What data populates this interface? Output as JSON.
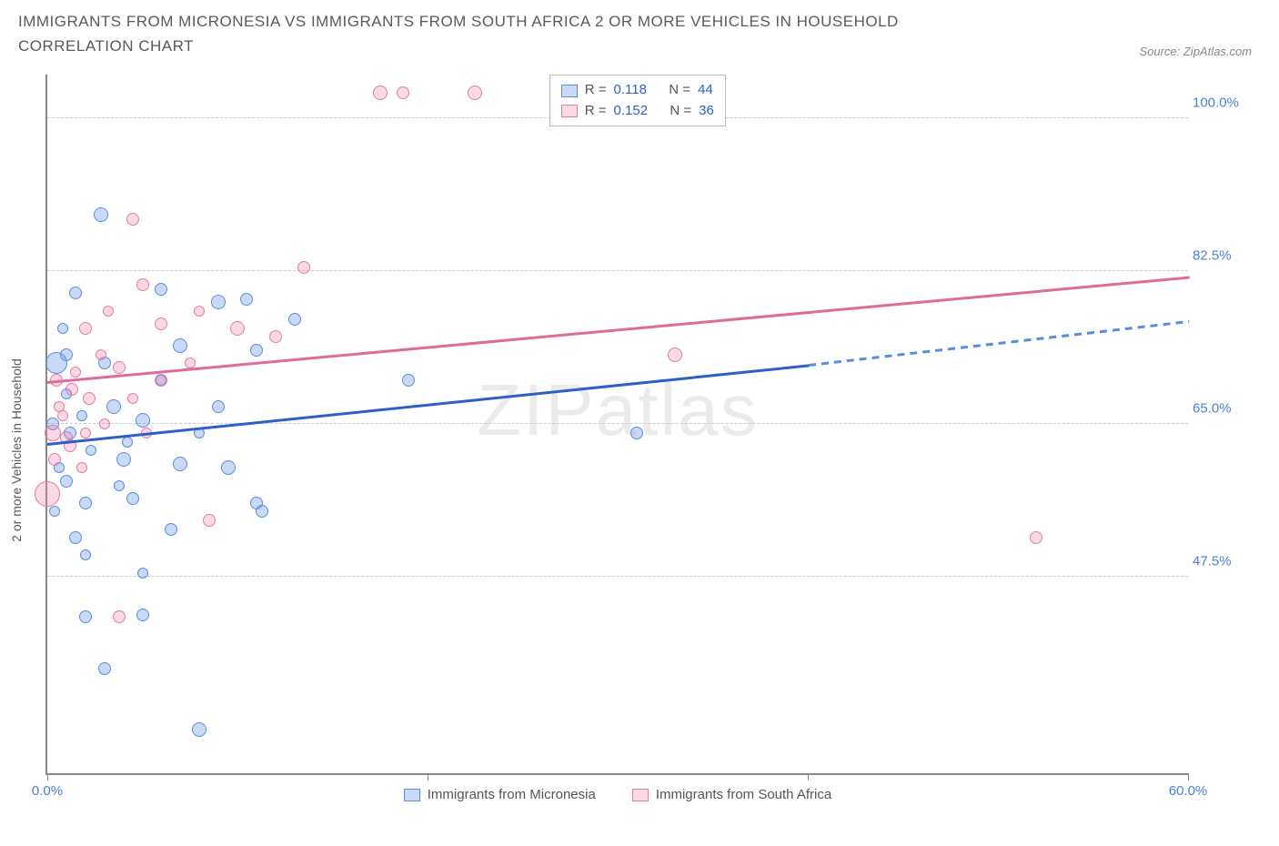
{
  "title": "IMMIGRANTS FROM MICRONESIA VS IMMIGRANTS FROM SOUTH AFRICA 2 OR MORE VEHICLES IN HOUSEHOLD CORRELATION CHART",
  "source_label": "Source: ZipAtlas.com",
  "watermark": "ZIPatlas",
  "y_axis_label": "2 or more Vehicles in Household",
  "chart": {
    "type": "scatter",
    "background_color": "#ffffff",
    "grid_color": "#cccccc",
    "axis_color": "#888888",
    "tick_label_color": "#4a7fd8",
    "xlim": [
      0,
      60
    ],
    "ylim": [
      25,
      105
    ],
    "y_ticks": [
      47.5,
      65.0,
      82.5,
      100.0
    ],
    "y_tick_labels": [
      "47.5%",
      "65.0%",
      "82.5%",
      "100.0%"
    ],
    "x_tick_positions": [
      0,
      20,
      40,
      60
    ],
    "x_tick_labels": {
      "left": "0.0%",
      "right": "60.0%"
    }
  },
  "series": [
    {
      "name": "Immigrants from Micronesia",
      "color_fill": "rgba(100,150,230,0.35)",
      "color_stroke": "#5a8de0",
      "css_class": "blue",
      "R": "0.118",
      "N": "44",
      "trend": {
        "x1": 0,
        "y1": 63,
        "x2": 40,
        "y2": 72,
        "dashed_to_x": 60,
        "dashed_to_y": 77,
        "color": "#2c5fc9"
      },
      "points": [
        {
          "x": 2.8,
          "y": 89,
          "r": 8
        },
        {
          "x": 1.5,
          "y": 80,
          "r": 7
        },
        {
          "x": 6,
          "y": 80.5,
          "r": 7
        },
        {
          "x": 9,
          "y": 79,
          "r": 8
        },
        {
          "x": 10.5,
          "y": 79.3,
          "r": 7
        },
        {
          "x": 3,
          "y": 72,
          "r": 7
        },
        {
          "x": 1,
          "y": 73,
          "r": 7
        },
        {
          "x": 0.5,
          "y": 72,
          "r": 12
        },
        {
          "x": 7,
          "y": 74,
          "r": 8
        },
        {
          "x": 11,
          "y": 73.5,
          "r": 7
        },
        {
          "x": 13,
          "y": 77,
          "r": 7
        },
        {
          "x": 0.3,
          "y": 65,
          "r": 7
        },
        {
          "x": 1.2,
          "y": 64,
          "r": 7
        },
        {
          "x": 3.5,
          "y": 67,
          "r": 8
        },
        {
          "x": 5,
          "y": 65.5,
          "r": 8
        },
        {
          "x": 9,
          "y": 67,
          "r": 7
        },
        {
          "x": 4,
          "y": 61,
          "r": 8
        },
        {
          "x": 7,
          "y": 60.5,
          "r": 8
        },
        {
          "x": 9.5,
          "y": 60,
          "r": 8
        },
        {
          "x": 1,
          "y": 58.5,
          "r": 7
        },
        {
          "x": 2,
          "y": 56,
          "r": 7
        },
        {
          "x": 4.5,
          "y": 56.5,
          "r": 7
        },
        {
          "x": 11,
          "y": 56,
          "r": 7
        },
        {
          "x": 11.3,
          "y": 55,
          "r": 7
        },
        {
          "x": 1.5,
          "y": 52,
          "r": 7
        },
        {
          "x": 6.5,
          "y": 53,
          "r": 7
        },
        {
          "x": 2,
          "y": 43,
          "r": 7
        },
        {
          "x": 5,
          "y": 43.2,
          "r": 7
        },
        {
          "x": 3,
          "y": 37,
          "r": 7
        },
        {
          "x": 8,
          "y": 30,
          "r": 8
        },
        {
          "x": 19,
          "y": 70,
          "r": 7
        },
        {
          "x": 31,
          "y": 64,
          "r": 7
        },
        {
          "x": 1,
          "y": 68.5,
          "r": 6
        },
        {
          "x": 2.3,
          "y": 62,
          "r": 6
        },
        {
          "x": 3.8,
          "y": 58,
          "r": 6
        },
        {
          "x": 0.6,
          "y": 60,
          "r": 6
        },
        {
          "x": 6,
          "y": 70,
          "r": 6
        },
        {
          "x": 0.4,
          "y": 55,
          "r": 6
        },
        {
          "x": 2,
          "y": 50,
          "r": 6
        },
        {
          "x": 5,
          "y": 48,
          "r": 6
        },
        {
          "x": 0.8,
          "y": 76,
          "r": 6
        },
        {
          "x": 8,
          "y": 64,
          "r": 6
        },
        {
          "x": 1.8,
          "y": 66,
          "r": 6
        },
        {
          "x": 4.2,
          "y": 63,
          "r": 6
        }
      ]
    },
    {
      "name": "Immigrants from South Africa",
      "color_fill": "rgba(240,130,170,0.30)",
      "color_stroke": "#e87aa8",
      "css_class": "pink",
      "R": "0.152",
      "N": "36",
      "trend": {
        "x1": 0,
        "y1": 70,
        "x2": 60,
        "y2": 82,
        "color": "#e06a9a"
      },
      "points": [
        {
          "x": 17.5,
          "y": 103,
          "r": 8
        },
        {
          "x": 18.7,
          "y": 103,
          "r": 7
        },
        {
          "x": 22.5,
          "y": 103,
          "r": 8
        },
        {
          "x": 4.5,
          "y": 88.5,
          "r": 7
        },
        {
          "x": 13.5,
          "y": 83,
          "r": 7
        },
        {
          "x": 5,
          "y": 81,
          "r": 7
        },
        {
          "x": 2,
          "y": 76,
          "r": 7
        },
        {
          "x": 6,
          "y": 76.5,
          "r": 7
        },
        {
          "x": 10,
          "y": 76,
          "r": 8
        },
        {
          "x": 12,
          "y": 75,
          "r": 7
        },
        {
          "x": 0.5,
          "y": 70,
          "r": 7
        },
        {
          "x": 1.3,
          "y": 69,
          "r": 7
        },
        {
          "x": 2.2,
          "y": 68,
          "r": 7
        },
        {
          "x": 6,
          "y": 70,
          "r": 7
        },
        {
          "x": 3.8,
          "y": 71.5,
          "r": 7
        },
        {
          "x": 0.3,
          "y": 64,
          "r": 9
        },
        {
          "x": 1,
          "y": 63.5,
          "r": 7
        },
        {
          "x": 1.2,
          "y": 62.5,
          "r": 7
        },
        {
          "x": 0.4,
          "y": 61,
          "r": 7
        },
        {
          "x": 2,
          "y": 64,
          "r": 6
        },
        {
          "x": 0,
          "y": 57,
          "r": 14
        },
        {
          "x": 8.5,
          "y": 54,
          "r": 7
        },
        {
          "x": 3.8,
          "y": 43,
          "r": 7
        },
        {
          "x": 33,
          "y": 73,
          "r": 8
        },
        {
          "x": 52,
          "y": 52,
          "r": 7
        },
        {
          "x": 0.8,
          "y": 66,
          "r": 6
        },
        {
          "x": 3,
          "y": 65,
          "r": 6
        },
        {
          "x": 4.5,
          "y": 68,
          "r": 6
        },
        {
          "x": 1.5,
          "y": 71,
          "r": 6
        },
        {
          "x": 2.8,
          "y": 73,
          "r": 6
        },
        {
          "x": 7.5,
          "y": 72,
          "r": 6
        },
        {
          "x": 0.6,
          "y": 67,
          "r": 6
        },
        {
          "x": 5.2,
          "y": 64,
          "r": 6
        },
        {
          "x": 1.8,
          "y": 60,
          "r": 6
        },
        {
          "x": 3.2,
          "y": 78,
          "r": 6
        },
        {
          "x": 8,
          "y": 78,
          "r": 6
        }
      ]
    }
  ],
  "legend_top": {
    "rows": [
      {
        "swatch": "blue",
        "r_label": "R =",
        "r_val": "0.118",
        "n_label": "N =",
        "n_val": "44"
      },
      {
        "swatch": "pink",
        "r_label": "R =",
        "r_val": "0.152",
        "n_label": "N =",
        "n_val": "36"
      }
    ]
  }
}
